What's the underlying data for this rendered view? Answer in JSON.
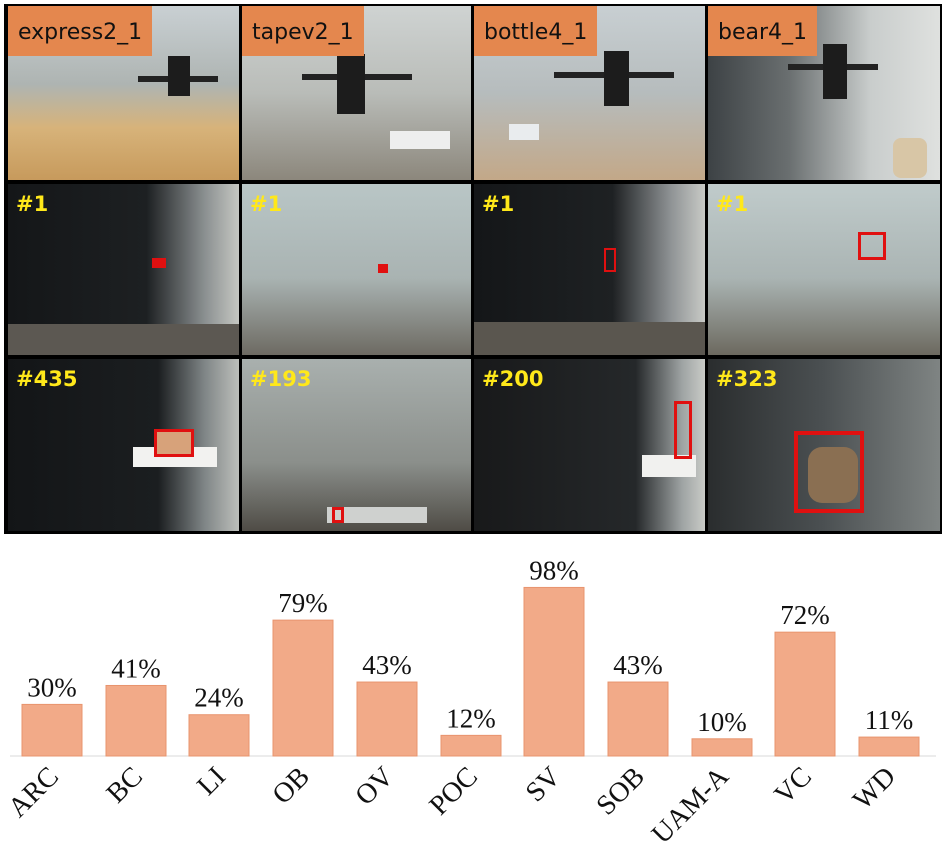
{
  "grid": {
    "sequences": [
      "express2_1",
      "tapev2_1",
      "bottle4_1",
      "bear4_1"
    ],
    "row2_frames": [
      "#1",
      "#1",
      "#1",
      "#1"
    ],
    "row3_frames": [
      "#435",
      "#193",
      "#200",
      "#323"
    ]
  },
  "chart_data": {
    "type": "bar",
    "categories": [
      "ARC",
      "BC",
      "LI",
      "OB",
      "OV",
      "POC",
      "SV",
      "SOB",
      "UAM-A",
      "VC",
      "WD"
    ],
    "values": [
      30,
      41,
      24,
      79,
      43,
      12,
      98,
      43,
      10,
      72,
      11
    ],
    "value_labels": [
      "30%",
      "41%",
      "24%",
      "79%",
      "43%",
      "12%",
      "98%",
      "43%",
      "10%",
      "72%",
      "11%"
    ],
    "unit": "%",
    "ylim": [
      0,
      100
    ],
    "colors": {
      "bar": "#f2aa88",
      "bar_edge": "#e8946e"
    }
  }
}
